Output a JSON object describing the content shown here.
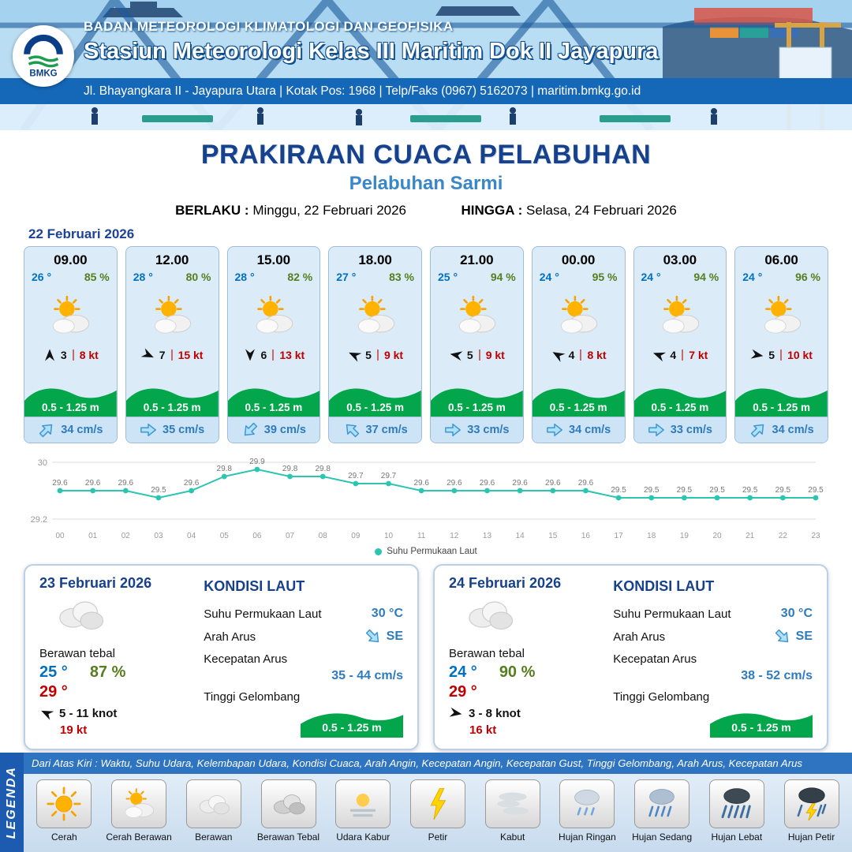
{
  "header": {
    "logo_text": "BMKG",
    "agency": "BADAN METEOROLOGI KLIMATOLOGI DAN GEOFISIKA",
    "station": "Stasiun Meteorologi Kelas III Maritim Dok II Jayapura",
    "address": "Jl. Bhayangkara II - Jayapura Utara | Kotak Pos: 1968 | Telp/Faks (0967) 5162073 | maritim.bmkg.go.id"
  },
  "title": {
    "main": "PRAKIRAAN CUACA PELABUHAN",
    "subtitle": "Pelabuhan Sarmi",
    "valid_label": "BERLAKU :",
    "valid_value": "Minggu, 22 Februari 2026",
    "until_label": "HINGGA :",
    "until_value": "Selasa, 24 Februari 2026"
  },
  "hourly": {
    "date": "22 Februari 2026",
    "cards": [
      {
        "time": "09.00",
        "temp": "26 °",
        "humidity": "85 %",
        "icon": "sun-cloud",
        "wind_dir_deg": -90,
        "wind_speed": "3",
        "gust": "8 kt",
        "wave_height": "0.5 - 1.25 m",
        "current_dir_deg": -45,
        "current_speed": "34 cm/s"
      },
      {
        "time": "12.00",
        "temp": "28 °",
        "humidity": "80 %",
        "icon": "sun-cloud",
        "wind_dir_deg": 25,
        "wind_speed": "7",
        "gust": "15 kt",
        "wave_height": "0.5 - 1.25 m",
        "current_dir_deg": 0,
        "current_speed": "35 cm/s"
      },
      {
        "time": "15.00",
        "temp": "28 °",
        "humidity": "82 %",
        "icon": "sun-cloud",
        "wind_dir_deg": 90,
        "wind_speed": "6",
        "gust": "13 kt",
        "wave_height": "0.5 - 1.25 m",
        "current_dir_deg": 135,
        "current_speed": "39 cm/s"
      },
      {
        "time": "18.00",
        "temp": "27 °",
        "humidity": "83 %",
        "icon": "sun-cloud",
        "wind_dir_deg": 205,
        "wind_speed": "5",
        "gust": "9 kt",
        "wave_height": "0.5 - 1.25 m",
        "current_dir_deg": -135,
        "current_speed": "37 cm/s"
      },
      {
        "time": "21.00",
        "temp": "25 °",
        "humidity": "94 %",
        "icon": "sun-cloud",
        "wind_dir_deg": 190,
        "wind_speed": "5",
        "gust": "9 kt",
        "wave_height": "0.5 - 1.25 m",
        "current_dir_deg": 0,
        "current_speed": "33 cm/s"
      },
      {
        "time": "00.00",
        "temp": "24 °",
        "humidity": "95 %",
        "icon": "sun-cloud",
        "wind_dir_deg": -150,
        "wind_speed": "4",
        "gust": "8 kt",
        "wave_height": "0.5 - 1.25 m",
        "current_dir_deg": 0,
        "current_speed": "34 cm/s"
      },
      {
        "time": "03.00",
        "temp": "24 °",
        "humidity": "94 %",
        "icon": "sun-cloud",
        "wind_dir_deg": -160,
        "wind_speed": "4",
        "gust": "7 kt",
        "wave_height": "0.5 - 1.25 m",
        "current_dir_deg": 0,
        "current_speed": "33 cm/s"
      },
      {
        "time": "06.00",
        "temp": "24 °",
        "humidity": "96 %",
        "icon": "sun-cloud",
        "wind_dir_deg": 10,
        "wind_speed": "5",
        "gust": "10 kt",
        "wave_height": "0.5 - 1.25 m",
        "current_dir_deg": -45,
        "current_speed": "34 cm/s"
      }
    ]
  },
  "chart_data": {
    "type": "line",
    "series_name": "Suhu Permukaan Laut",
    "x": [
      "00",
      "01",
      "02",
      "03",
      "04",
      "05",
      "06",
      "07",
      "08",
      "09",
      "10",
      "11",
      "12",
      "13",
      "14",
      "15",
      "16",
      "17",
      "18",
      "19",
      "20",
      "21",
      "22",
      "23"
    ],
    "values": [
      29.6,
      29.6,
      29.6,
      29.5,
      29.6,
      29.8,
      29.9,
      29.8,
      29.8,
      29.7,
      29.7,
      29.6,
      29.6,
      29.6,
      29.6,
      29.6,
      29.6,
      29.5,
      29.5,
      29.5,
      29.5,
      29.5,
      29.5,
      29.5
    ],
    "ylim": [
      29.2,
      30
    ],
    "ylabel": "",
    "xlabel": "",
    "grid": true,
    "legend_position": "bottom",
    "line_color": "#2cc5b2"
  },
  "days": [
    {
      "date": "23 Februari 2026",
      "icon": "cloud",
      "condition": "Berawan tebal",
      "temp_min": "25 °",
      "humidity": "87 %",
      "temp_max": "29 °",
      "wind_dir_deg": 205,
      "wind_range": "5 - 11 knot",
      "gust": "19 kt",
      "sea": {
        "title": "KONDISI LAUT",
        "sst_label": "Suhu Permukaan Laut",
        "sst": "30 °C",
        "current_dir_label": "Arah Arus",
        "current_dir": "SE",
        "current_dir_deg": 45,
        "current_speed_label": "Kecepatan Arus",
        "current_speed": "35 - 44 cm/s",
        "wave_label": "Tinggi Gelombang",
        "wave": "0.5 - 1.25 m"
      }
    },
    {
      "date": "24 Februari 2026",
      "icon": "cloud",
      "condition": "Berawan tebal",
      "temp_min": "24 °",
      "humidity": "90 %",
      "temp_max": "29 °",
      "wind_dir_deg": 10,
      "wind_range": "3 - 8 knot",
      "gust": "16 kt",
      "sea": {
        "title": "KONDISI LAUT",
        "sst_label": "Suhu Permukaan Laut",
        "sst": "30 °C",
        "current_dir_label": "Arah Arus",
        "current_dir": "SE",
        "current_dir_deg": 45,
        "current_speed_label": "Kecepatan Arus",
        "current_speed": "38 - 52 cm/s",
        "wave_label": "Tinggi Gelombang",
        "wave": "0.5 - 1.25 m"
      }
    }
  ],
  "legend": {
    "vertical_label": "LEGENDA",
    "caption": "Dari Atas Kiri : Waktu, Suhu Udara, Kelembapan Udara, Kondisi Cuaca, Arah Angin, Kecepatan Angin, Kecepatan Gust, Tinggi Gelombang, Arah Arus, Kecepatan Arus",
    "items": [
      {
        "label": "Cerah",
        "icon": "sun"
      },
      {
        "label": "Cerah Berawan",
        "icon": "sun-cloud"
      },
      {
        "label": "Berawan",
        "icon": "cloud"
      },
      {
        "label": "Berawan Tebal",
        "icon": "cloud-thick"
      },
      {
        "label": "Udara Kabur",
        "icon": "haze"
      },
      {
        "label": "Petir",
        "icon": "lightning"
      },
      {
        "label": "Kabut",
        "icon": "fog"
      },
      {
        "label": "Hujan Ringan",
        "icon": "rain-light"
      },
      {
        "label": "Hujan Sedang",
        "icon": "rain-medium"
      },
      {
        "label": "Hujan Lebat",
        "icon": "rain-heavy"
      },
      {
        "label": "Hujan Petir",
        "icon": "storm"
      }
    ]
  }
}
